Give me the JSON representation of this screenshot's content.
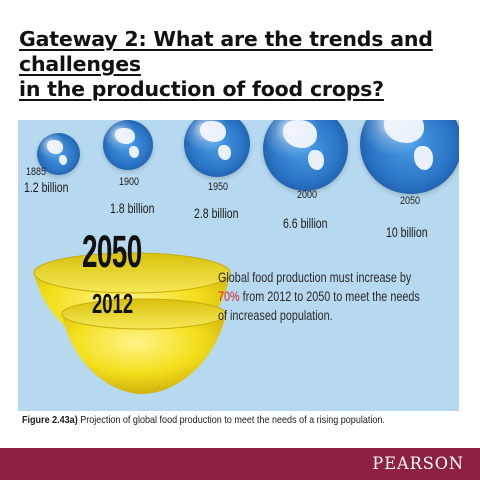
{
  "title": {
    "line1": "Gateway 2: What are the trends and challenges",
    "line2": "in the production of food crops?"
  },
  "globes": [
    {
      "year": "1885",
      "population": "1.2 billion"
    },
    {
      "year": "1900",
      "population": "1.8 billion"
    },
    {
      "year": "1950",
      "population": "2.8 billion"
    },
    {
      "year": "2000",
      "population": "6.6 billion"
    },
    {
      "year": "2050",
      "population": "10 billion"
    }
  ],
  "bowls": {
    "large_label": "2050",
    "small_label": "2012",
    "color": "#f2de18"
  },
  "statement": {
    "before": "Global food production must increase by",
    "percent": "70%",
    "after_line2": " from 2012 to 2050 to meet the needs",
    "line3": "of increased population."
  },
  "caption": {
    "label": "Figure 2.43a)",
    "text": " Projection of global food production to meet the needs of a rising population."
  },
  "footer": {
    "brand": "PEARSON",
    "color": "#8e2040"
  },
  "colors": {
    "panel": "#b6d9ef",
    "highlight": "#d4292d"
  }
}
